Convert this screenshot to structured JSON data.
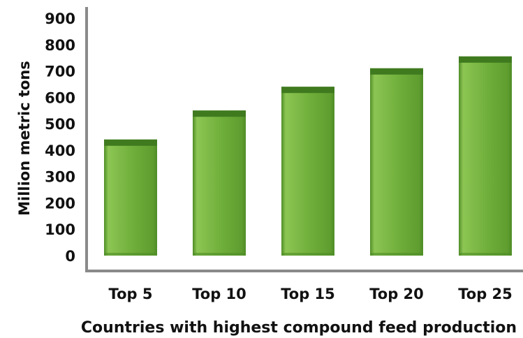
{
  "chart_data": {
    "type": "bar",
    "categories": [
      "Top 5",
      "Top 10",
      "Top 15",
      "Top 20",
      "Top 25"
    ],
    "values": [
      440,
      550,
      640,
      710,
      755
    ],
    "xlabel": "Countries with highest compound feed production",
    "ylabel": "Million metric tons",
    "ylim": [
      0,
      900
    ],
    "yticks": [
      0,
      100,
      200,
      300,
      400,
      500,
      600,
      700,
      800,
      900
    ],
    "grid": false,
    "legend": "none",
    "colors": {
      "bar_top": "#3f7a1f",
      "bar_body": "#6fae3a",
      "bar_highlight": "#8cc553",
      "bar_shade": "#4f8d27",
      "axis": "#8a8a8a"
    }
  }
}
